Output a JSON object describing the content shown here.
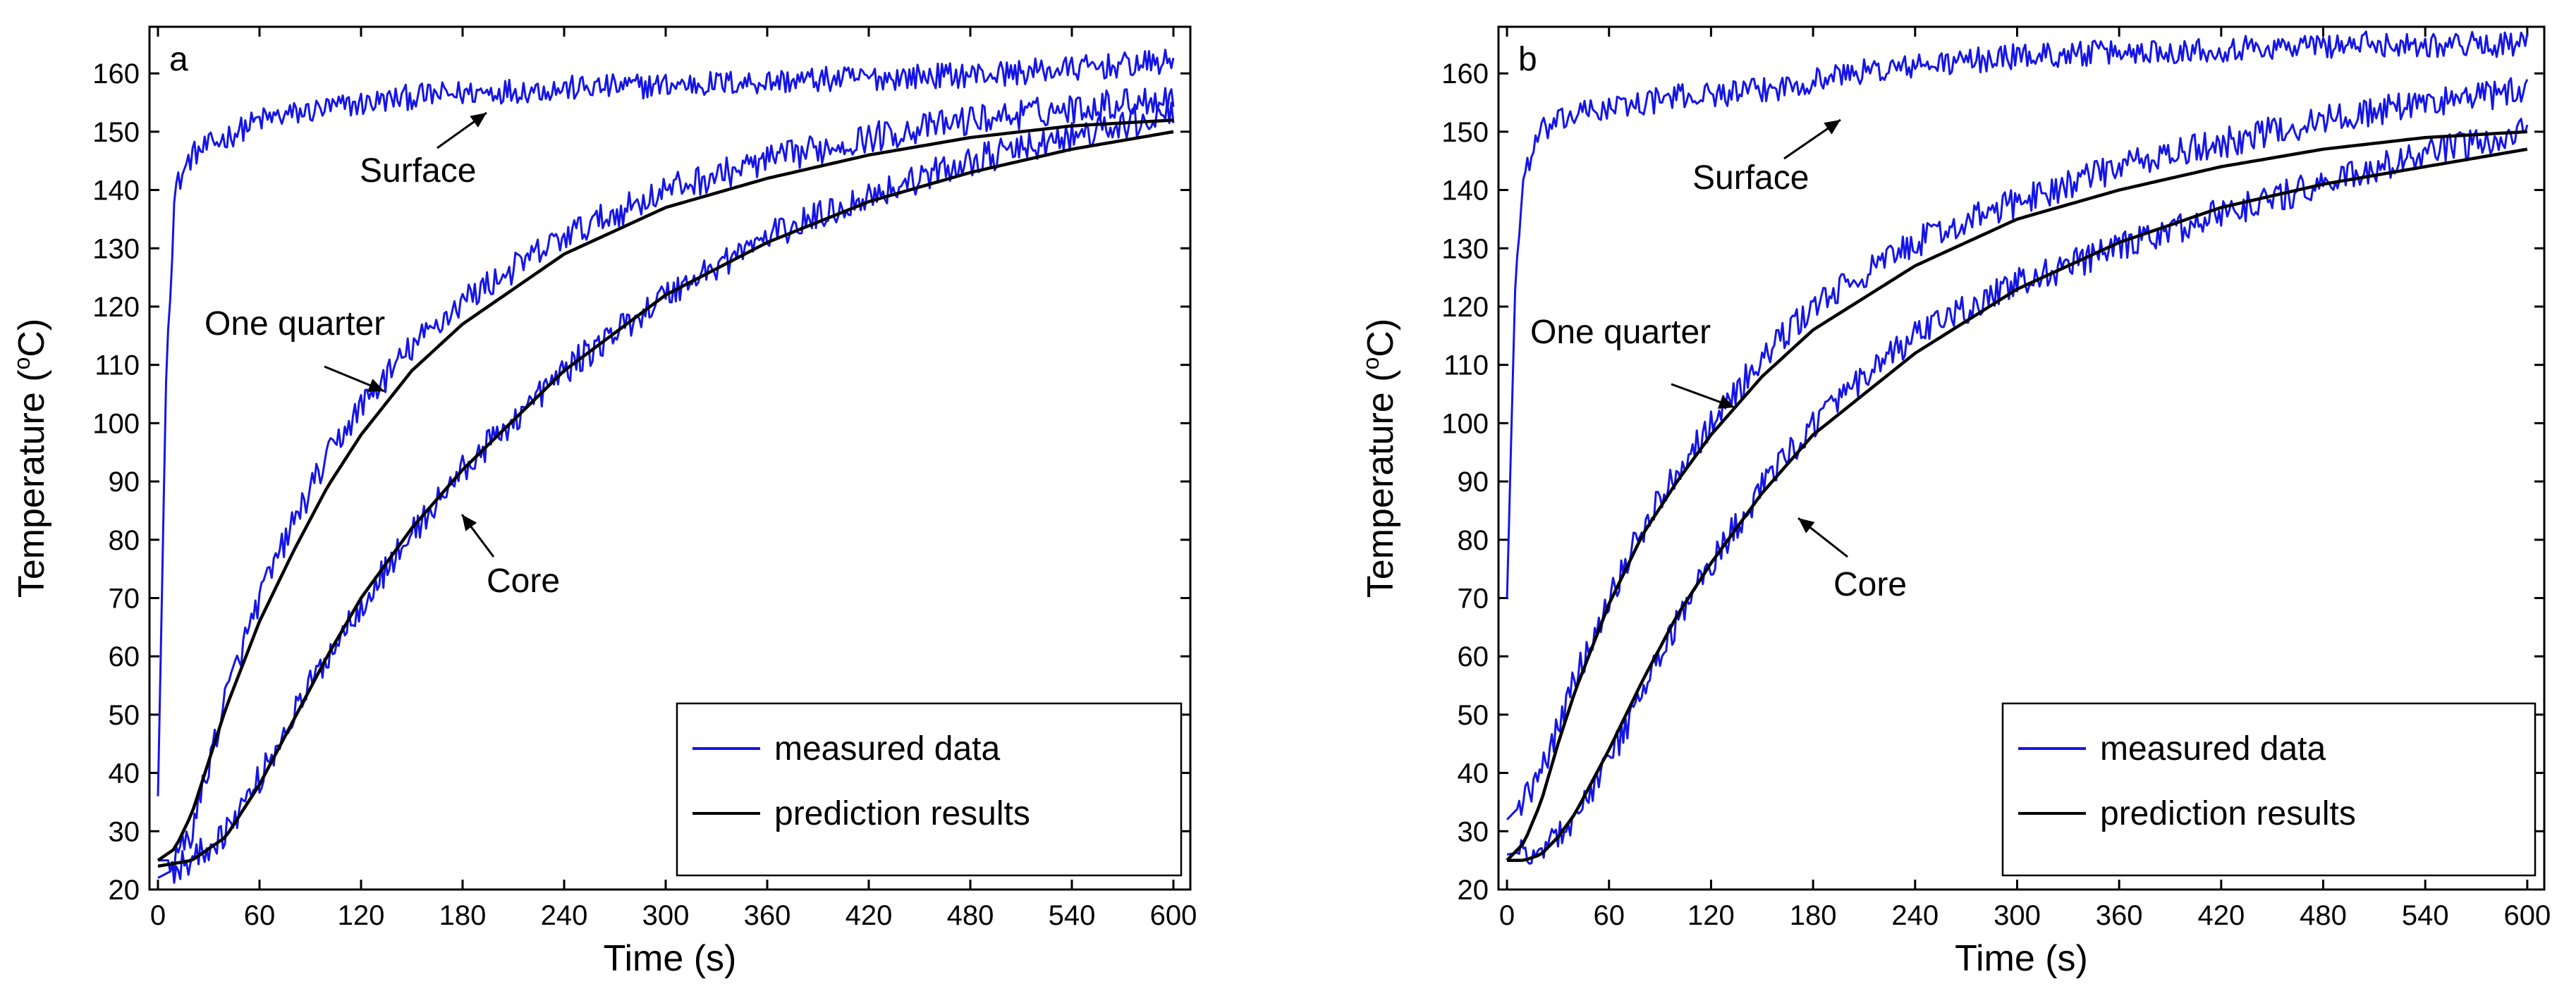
{
  "figure": {
    "panels": [
      {
        "id": "a",
        "letter": "a",
        "xlabel": "Time (s)",
        "ylabel_main": "Temperature (",
        "ylabel_sup": "o",
        "ylabel_end": "C)",
        "annotations": {
          "surface": "Surface",
          "quarter": "One quarter",
          "core": "Core"
        },
        "legend": [
          "measured data",
          "prediction results"
        ]
      },
      {
        "id": "b",
        "letter": "b",
        "xlabel": "Time (s)",
        "ylabel_main": "Temperature (",
        "ylabel_sup": "o",
        "ylabel_end": "C)",
        "annotations": {
          "surface": "Surface",
          "quarter": "One quarter",
          "core": "Core"
        },
        "legend": [
          "measured data",
          "prediction results"
        ]
      }
    ],
    "colors": {
      "measured": "#1515e6",
      "predicted": "#000000"
    }
  },
  "chart_data": [
    {
      "type": "line",
      "panel": "a",
      "xlabel": "Time (s)",
      "ylabel": "Temperature (oC)",
      "xlim": [
        -5,
        610
      ],
      "ylim": [
        20,
        168
      ],
      "xticks": [
        0,
        60,
        120,
        180,
        240,
        300,
        360,
        420,
        480,
        540,
        600
      ],
      "yticks": [
        20,
        30,
        40,
        50,
        60,
        70,
        80,
        90,
        100,
        110,
        120,
        130,
        140,
        150,
        160
      ],
      "legend_position": "bottom-right",
      "series": [
        {
          "name": "measured data",
          "label": "Surface",
          "x": [
            0,
            5,
            10,
            20,
            40,
            60,
            100,
            150,
            200,
            300,
            400,
            500,
            600
          ],
          "y": [
            36,
            110,
            140,
            146,
            149,
            152,
            154,
            156,
            157,
            158,
            159,
            160,
            162
          ]
        },
        {
          "name": "measured data",
          "label": "One quarter",
          "x": [
            0,
            10,
            20,
            40,
            60,
            80,
            100,
            120,
            150,
            180,
            240,
            300,
            360,
            420,
            480,
            540,
            600
          ],
          "y": [
            25,
            25,
            30,
            53,
            70,
            83,
            94,
            103,
            113,
            121,
            132,
            140,
            145,
            149,
            152,
            154,
            156
          ]
        },
        {
          "name": "measured data",
          "label": "Core",
          "x": [
            0,
            20,
            40,
            60,
            80,
            100,
            120,
            150,
            180,
            240,
            300,
            360,
            420,
            480,
            540,
            600
          ],
          "y": [
            22,
            25,
            30,
            39,
            50,
            60,
            69,
            81,
            92,
            109,
            122,
            132,
            139,
            145,
            149,
            153
          ]
        },
        {
          "name": "prediction results",
          "label": "One quarter",
          "x": [
            0,
            10,
            20,
            30,
            40,
            60,
            80,
            100,
            120,
            150,
            180,
            240,
            300,
            360,
            420,
            480,
            540,
            600
          ],
          "y": [
            25,
            27,
            33,
            42,
            51,
            66,
            78,
            89,
            98,
            109,
            117,
            129,
            137,
            142,
            146,
            149,
            151,
            152
          ]
        },
        {
          "name": "prediction results",
          "label": "Core",
          "x": [
            0,
            20,
            40,
            60,
            80,
            100,
            120,
            150,
            180,
            240,
            300,
            360,
            420,
            480,
            540,
            600
          ],
          "y": [
            24,
            25,
            29,
            38,
            49,
            60,
            70,
            82,
            92,
            109,
            122,
            131,
            138,
            143,
            147,
            150
          ]
        }
      ]
    },
    {
      "type": "line",
      "panel": "b",
      "xlabel": "Time (s)",
      "ylabel": "Temperature (oC)",
      "xlim": [
        -5,
        610
      ],
      "ylim": [
        20,
        168
      ],
      "xticks": [
        0,
        60,
        120,
        180,
        240,
        300,
        360,
        420,
        480,
        540,
        600
      ],
      "yticks": [
        20,
        30,
        40,
        50,
        60,
        70,
        80,
        90,
        100,
        110,
        120,
        130,
        140,
        150,
        160
      ],
      "legend_position": "bottom-right",
      "series": [
        {
          "name": "measured data",
          "label": "Surface",
          "x": [
            0,
            5,
            10,
            20,
            40,
            60,
            100,
            150,
            200,
            300,
            400,
            500,
            600
          ],
          "y": [
            70,
            125,
            143,
            150,
            153,
            154,
            156,
            157,
            160,
            163,
            164,
            165,
            165
          ]
        },
        {
          "name": "measured data",
          "label": "One quarter",
          "x": [
            0,
            10,
            20,
            30,
            40,
            60,
            80,
            100,
            120,
            150,
            180,
            240,
            300,
            360,
            420,
            480,
            540,
            600
          ],
          "y": [
            32,
            35,
            40,
            48,
            56,
            70,
            82,
            92,
            100,
            111,
            120,
            131,
            138,
            144,
            148,
            152,
            155,
            157
          ]
        },
        {
          "name": "measured data",
          "label": "Core",
          "x": [
            0,
            20,
            40,
            60,
            80,
            100,
            120,
            150,
            180,
            240,
            300,
            360,
            420,
            480,
            540,
            600
          ],
          "y": [
            26,
            27,
            32,
            42,
            54,
            66,
            76,
            89,
            100,
            115,
            124,
            130,
            136,
            141,
            146,
            150
          ]
        },
        {
          "name": "prediction results",
          "label": "One quarter",
          "x": [
            0,
            10,
            20,
            30,
            40,
            60,
            80,
            100,
            120,
            150,
            180,
            240,
            300,
            360,
            420,
            480,
            540,
            600
          ],
          "y": [
            25,
            28,
            35,
            45,
            54,
            69,
            81,
            90,
            98,
            108,
            116,
            127,
            135,
            140,
            144,
            147,
            149,
            150
          ]
        },
        {
          "name": "prediction results",
          "label": "Core",
          "x": [
            0,
            10,
            20,
            30,
            40,
            60,
            80,
            100,
            120,
            150,
            180,
            240,
            300,
            360,
            420,
            480,
            540,
            600
          ],
          "y": [
            25,
            25,
            26,
            29,
            33,
            44,
            56,
            67,
            76,
            88,
            98,
            112,
            123,
            131,
            137,
            141,
            144,
            147
          ]
        }
      ]
    }
  ]
}
